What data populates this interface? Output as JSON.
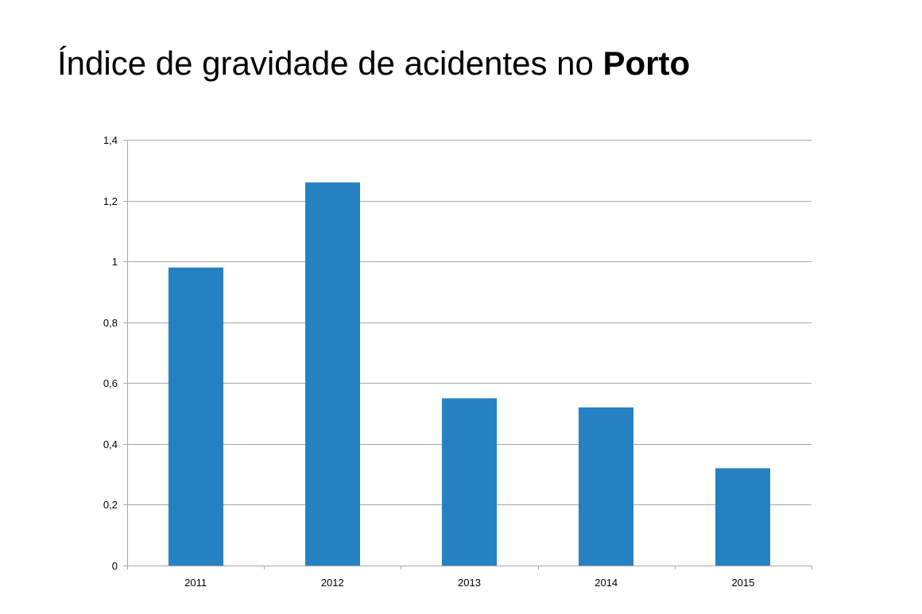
{
  "title": {
    "main": "Índice de gravidade de acidentes no ",
    "bold": "Porto"
  },
  "chart_data": {
    "type": "bar",
    "categories": [
      "2011",
      "2012",
      "2013",
      "2014",
      "2015"
    ],
    "values": [
      0.98,
      1.26,
      0.55,
      0.52,
      0.32
    ],
    "ylim": [
      0,
      1.4
    ],
    "yticks": [
      0,
      0.2,
      0.4,
      0.6,
      0.8,
      1,
      1.2,
      1.4
    ],
    "ytick_labels": [
      "0",
      "0,2",
      "0,4",
      "0,6",
      "0,8",
      "1",
      "1,2",
      "1,4"
    ],
    "grid": true,
    "legend": "none",
    "bar_color": "#2681c2",
    "grid_color": "#a6a6a6",
    "axis_color": "#a6a6a6"
  }
}
